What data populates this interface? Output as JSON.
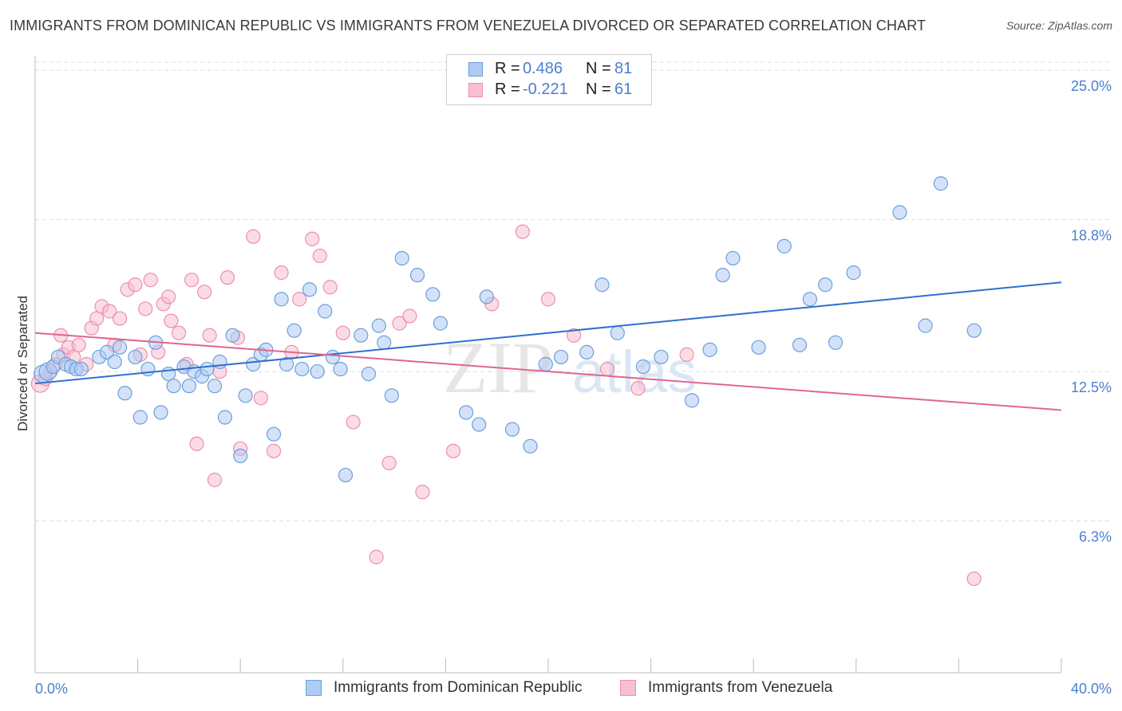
{
  "header": {
    "title": "IMMIGRANTS FROM DOMINICAN REPUBLIC VS IMMIGRANTS FROM VENEZUELA DIVORCED OR SEPARATED CORRELATION CHART",
    "source": "Source: ZipAtlas.com"
  },
  "legend": {
    "series1": {
      "r_label": "R =",
      "r_value": "0.486",
      "n_label": "N =",
      "n_value": "81"
    },
    "series2": {
      "r_label": "R =",
      "r_value": "-0.221",
      "n_label": "N =",
      "n_value": "61"
    }
  },
  "watermark": {
    "zip": "ZIP",
    "atlas": "atlas"
  },
  "colors": {
    "blue_fill": "#aecbf2",
    "blue_stroke": "#6c9fdc",
    "blue_line": "#2f6fd0",
    "pink_fill": "#f7bfd0",
    "pink_stroke": "#eb8fae",
    "pink_line": "#e06690",
    "tick_text": "#4a7fd0",
    "grid": "#dddddd"
  },
  "chart_data": {
    "type": "scatter",
    "title": "IMMIGRANTS FROM DOMINICAN REPUBLIC VS IMMIGRANTS FROM VENEZUELA DIVORCED OR SEPARATED CORRELATION CHART",
    "xlabel": "",
    "ylabel": "Divorced or Separated",
    "xlim": [
      0,
      40
    ],
    "ylim": [
      0,
      25.6
    ],
    "x_tick_labels": [
      "0.0%",
      "40.0%"
    ],
    "y_ticks": [
      6.3,
      12.5,
      18.8,
      25.0
    ],
    "y_tick_labels": [
      "6.3%",
      "12.5%",
      "18.8%",
      "25.0%"
    ],
    "grid": "horizontal dashed",
    "legend_position": "top-center",
    "series": [
      {
        "name": "Immigrants from Dominican Republic",
        "color": "blue",
        "points": [
          [
            0.3,
            12.4
          ],
          [
            0.5,
            12.5
          ],
          [
            0.7,
            12.7
          ],
          [
            0.9,
            13.1
          ],
          [
            1.2,
            12.8
          ],
          [
            1.4,
            12.7
          ],
          [
            1.6,
            12.6
          ],
          [
            1.8,
            12.6
          ],
          [
            2.5,
            13.1
          ],
          [
            2.8,
            13.3
          ],
          [
            3.1,
            12.9
          ],
          [
            3.3,
            13.5
          ],
          [
            3.5,
            11.6
          ],
          [
            3.9,
            13.1
          ],
          [
            4.1,
            10.6
          ],
          [
            4.4,
            12.6
          ],
          [
            4.7,
            13.7
          ],
          [
            4.9,
            10.8
          ],
          [
            5.2,
            12.4
          ],
          [
            5.4,
            11.9
          ],
          [
            5.8,
            12.7
          ],
          [
            6.0,
            11.9
          ],
          [
            6.2,
            12.5
          ],
          [
            6.5,
            12.3
          ],
          [
            6.7,
            12.6
          ],
          [
            7.0,
            11.9
          ],
          [
            7.2,
            12.9
          ],
          [
            7.4,
            10.6
          ],
          [
            7.7,
            14.0
          ],
          [
            8.0,
            9.0
          ],
          [
            8.2,
            11.5
          ],
          [
            8.5,
            12.8
          ],
          [
            8.8,
            13.2
          ],
          [
            9.0,
            13.4
          ],
          [
            9.3,
            9.9
          ],
          [
            9.6,
            15.5
          ],
          [
            9.8,
            12.8
          ],
          [
            10.1,
            14.2
          ],
          [
            10.4,
            12.6
          ],
          [
            10.7,
            15.9
          ],
          [
            11.0,
            12.5
          ],
          [
            11.3,
            15.0
          ],
          [
            11.6,
            13.1
          ],
          [
            11.9,
            12.6
          ],
          [
            12.1,
            8.2
          ],
          [
            12.7,
            14.0
          ],
          [
            13.0,
            12.4
          ],
          [
            13.4,
            14.4
          ],
          [
            13.6,
            13.7
          ],
          [
            13.9,
            11.5
          ],
          [
            14.3,
            17.2
          ],
          [
            14.9,
            16.5
          ],
          [
            15.5,
            15.7
          ],
          [
            15.8,
            14.5
          ],
          [
            16.8,
            10.8
          ],
          [
            17.3,
            10.3
          ],
          [
            17.6,
            15.6
          ],
          [
            18.6,
            10.1
          ],
          [
            19.3,
            9.4
          ],
          [
            19.9,
            12.8
          ],
          [
            20.5,
            13.1
          ],
          [
            21.5,
            13.3
          ],
          [
            22.1,
            16.1
          ],
          [
            22.7,
            14.1
          ],
          [
            23.7,
            12.7
          ],
          [
            24.4,
            13.1
          ],
          [
            25.6,
            11.3
          ],
          [
            26.3,
            13.4
          ],
          [
            26.8,
            16.5
          ],
          [
            27.2,
            17.2
          ],
          [
            28.2,
            13.5
          ],
          [
            29.2,
            17.7
          ],
          [
            29.8,
            13.6
          ],
          [
            30.2,
            15.5
          ],
          [
            30.8,
            16.1
          ],
          [
            31.2,
            13.7
          ],
          [
            31.9,
            16.6
          ],
          [
            33.7,
            19.1
          ],
          [
            34.7,
            14.4
          ],
          [
            35.3,
            20.3
          ],
          [
            36.6,
            14.2
          ]
        ]
      },
      {
        "name": "Immigrants from Venezuela",
        "color": "pink",
        "points": [
          [
            0.2,
            12.0
          ],
          [
            0.4,
            12.2
          ],
          [
            0.6,
            12.5
          ],
          [
            0.8,
            12.8
          ],
          [
            1.0,
            14.0
          ],
          [
            1.1,
            13.2
          ],
          [
            1.3,
            13.5
          ],
          [
            1.5,
            13.1
          ],
          [
            1.7,
            13.6
          ],
          [
            2.0,
            12.8
          ],
          [
            2.2,
            14.3
          ],
          [
            2.4,
            14.7
          ],
          [
            2.6,
            15.2
          ],
          [
            2.9,
            15.0
          ],
          [
            3.1,
            13.6
          ],
          [
            3.3,
            14.7
          ],
          [
            3.6,
            15.9
          ],
          [
            3.9,
            16.1
          ],
          [
            4.1,
            13.2
          ],
          [
            4.3,
            15.1
          ],
          [
            4.5,
            16.3
          ],
          [
            4.8,
            13.3
          ],
          [
            5.0,
            15.3
          ],
          [
            5.2,
            15.6
          ],
          [
            5.3,
            14.6
          ],
          [
            5.6,
            14.1
          ],
          [
            5.9,
            12.8
          ],
          [
            6.1,
            16.3
          ],
          [
            6.3,
            9.5
          ],
          [
            6.6,
            15.8
          ],
          [
            6.8,
            14.0
          ],
          [
            7.0,
            8.0
          ],
          [
            7.2,
            12.5
          ],
          [
            7.5,
            16.4
          ],
          [
            7.9,
            13.9
          ],
          [
            8.0,
            9.3
          ],
          [
            8.5,
            18.1
          ],
          [
            8.8,
            11.4
          ],
          [
            9.3,
            9.2
          ],
          [
            9.6,
            16.6
          ],
          [
            10.0,
            13.3
          ],
          [
            10.3,
            15.5
          ],
          [
            10.8,
            18.0
          ],
          [
            11.1,
            17.3
          ],
          [
            11.5,
            16.0
          ],
          [
            12.0,
            14.1
          ],
          [
            12.4,
            10.4
          ],
          [
            13.3,
            4.8
          ],
          [
            13.8,
            8.7
          ],
          [
            14.2,
            14.5
          ],
          [
            14.6,
            14.8
          ],
          [
            15.1,
            7.5
          ],
          [
            16.3,
            9.2
          ],
          [
            17.8,
            15.3
          ],
          [
            19.0,
            18.3
          ],
          [
            20.0,
            15.5
          ],
          [
            21.0,
            14.0
          ],
          [
            22.3,
            12.6
          ],
          [
            23.5,
            11.8
          ],
          [
            25.4,
            13.2
          ],
          [
            36.6,
            3.9
          ]
        ]
      }
    ],
    "trendlines": [
      {
        "series": "Immigrants from Dominican Republic",
        "x": [
          0,
          40
        ],
        "y": [
          12.0,
          16.2
        ]
      },
      {
        "series": "Immigrants from Venezuela",
        "x": [
          0,
          40
        ],
        "y": [
          14.1,
          10.9
        ]
      }
    ]
  },
  "bottom_legend": {
    "item1": "Immigrants from Dominican Republic",
    "item2": "Immigrants from Venezuela"
  }
}
